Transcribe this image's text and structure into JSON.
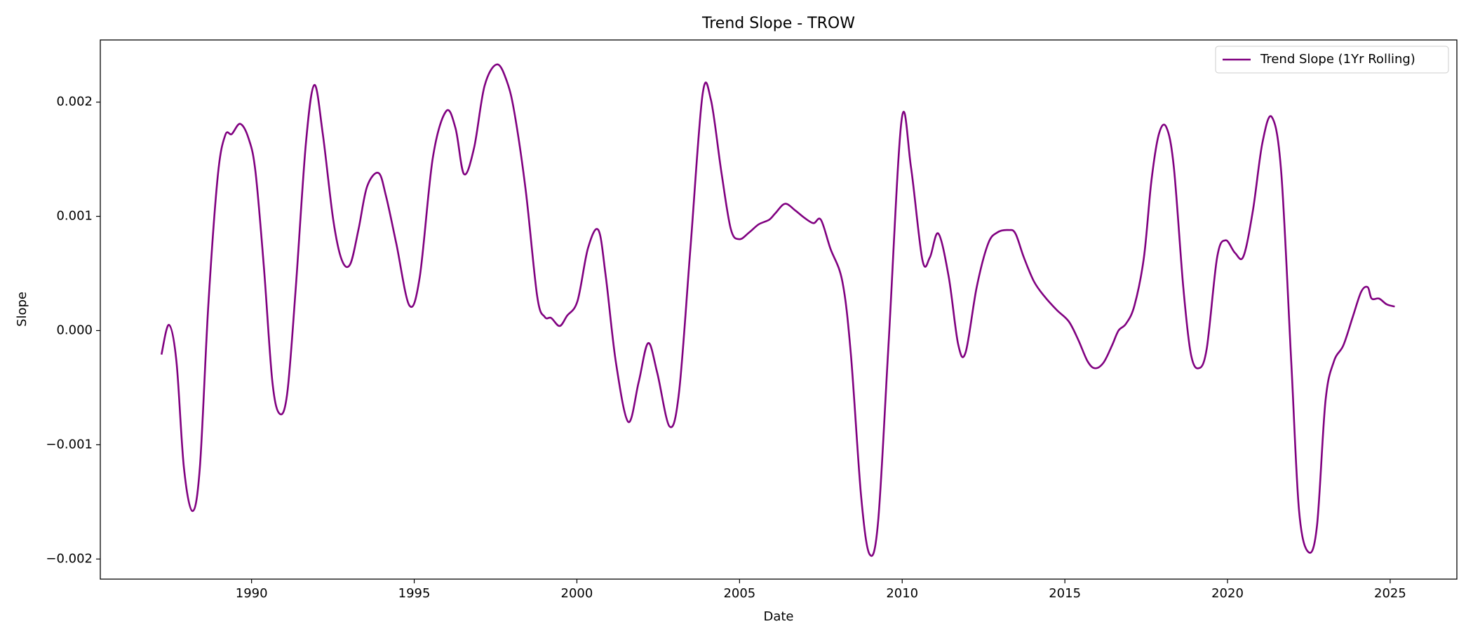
{
  "chart_data": {
    "type": "line",
    "title": "Trend Slope - TROW",
    "x_label": "Date",
    "y_label": "Slope",
    "x": [
      1987.23,
      1987.46,
      1987.69,
      1987.92,
      1988.18,
      1988.41,
      1988.67,
      1988.96,
      1989.19,
      1989.39,
      1989.65,
      1989.91,
      1990.12,
      1990.38,
      1990.64,
      1990.87,
      1991.1,
      1991.36,
      1991.67,
      1991.93,
      1992.19,
      1992.51,
      1992.77,
      1993.03,
      1993.29,
      1993.55,
      1993.9,
      1994.13,
      1994.45,
      1994.85,
      1995.17,
      1995.57,
      1995.98,
      1996.27,
      1996.53,
      1996.84,
      1997.16,
      1997.54,
      1997.85,
      1998.09,
      1998.43,
      1998.78,
      1999.01,
      1999.21,
      1999.47,
      1999.7,
      2000.02,
      2000.34,
      2000.66,
      2000.89,
      2001.2,
      2001.58,
      2001.9,
      2002.19,
      2002.47,
      2002.85,
      2003.14,
      2003.49,
      2003.86,
      2004.12,
      2004.44,
      2004.73,
      2004.99,
      2005.3,
      2005.59,
      2005.91,
      2006.11,
      2006.4,
      2006.72,
      2006.98,
      2007.27,
      2007.5,
      2007.79,
      2008.16,
      2008.42,
      2008.74,
      2009.0,
      2009.26,
      2009.58,
      2009.98,
      2010.27,
      2010.62,
      2010.85,
      2011.11,
      2011.43,
      2011.72,
      2011.95,
      2012.29,
      2012.64,
      2012.93,
      2013.27,
      2013.48,
      2013.74,
      2014.05,
      2014.37,
      2014.75,
      2015.12,
      2015.41,
      2015.7,
      2015.93,
      2016.19,
      2016.45,
      2016.65,
      2016.88,
      2017.14,
      2017.43,
      2017.66,
      2017.89,
      2018.12,
      2018.35,
      2018.64,
      2018.87,
      2019.11,
      2019.36,
      2019.68,
      2019.94,
      2020.23,
      2020.49,
      2020.78,
      2021.07,
      2021.36,
      2021.65,
      2021.96,
      2022.2,
      2022.49,
      2022.75,
      2023.01,
      2023.27,
      2023.56,
      2023.85,
      2024.11,
      2024.31,
      2024.43,
      2024.66,
      2024.89,
      2025.14
    ],
    "series": [
      {
        "name": "Trend Slope (1Yr Rolling)",
        "color": "#800080",
        "values": [
          -0.00021,
          5e-05,
          -0.00027,
          -0.0012,
          -0.00158,
          -0.0012,
          0.00022,
          0.00135,
          0.00171,
          0.00172,
          0.00181,
          0.00168,
          0.00139,
          0.00055,
          -0.00045,
          -0.00073,
          -0.00054,
          0.00038,
          0.00164,
          0.00215,
          0.00172,
          0.00097,
          0.00062,
          0.00058,
          0.00089,
          0.00126,
          0.00138,
          0.00118,
          0.00076,
          0.00022,
          0.00047,
          0.00151,
          0.00192,
          0.00177,
          0.00137,
          0.0016,
          0.00214,
          0.00233,
          0.00218,
          0.00189,
          0.00122,
          0.0003,
          0.00012,
          0.00011,
          4e-05,
          0.00013,
          0.00026,
          0.00072,
          0.00088,
          0.00047,
          -0.00028,
          -0.0008,
          -0.00045,
          -0.00011,
          -0.00037,
          -0.00084,
          -0.00054,
          0.00072,
          0.00206,
          0.00202,
          0.00139,
          0.00089,
          0.0008,
          0.00086,
          0.00093,
          0.00097,
          0.00103,
          0.00111,
          0.00105,
          0.00099,
          0.00094,
          0.00097,
          0.00072,
          0.00043,
          -0.0002,
          -0.00146,
          -0.00196,
          -0.00167,
          -0.00012,
          0.00184,
          0.00143,
          0.00062,
          0.00064,
          0.00085,
          0.00047,
          -0.00012,
          -0.00019,
          0.00038,
          0.00076,
          0.00086,
          0.00088,
          0.00085,
          0.00064,
          0.00043,
          0.0003,
          0.00018,
          8e-05,
          -8e-05,
          -0.00027,
          -0.00033,
          -0.00028,
          -0.00013,
          0,
          6e-05,
          0.00022,
          0.00064,
          0.00131,
          0.00172,
          0.00178,
          0.00143,
          0.00038,
          -0.0002,
          -0.00033,
          -0.00016,
          0.00064,
          0.00079,
          0.00068,
          0.00065,
          0.00105,
          0.00164,
          0.00187,
          0.00139,
          -0.00028,
          -0.00158,
          -0.00194,
          -0.00171,
          -0.00062,
          -0.00027,
          -0.00013,
          0.00012,
          0.00034,
          0.00038,
          0.00028,
          0.00028,
          0.00023,
          0.00021
        ]
      }
    ],
    "xlim": [
      1985.35,
      2027.05
    ],
    "xticks": [
      1990,
      1995,
      2000,
      2005,
      2010,
      2015,
      2020,
      2025
    ],
    "ylim": [
      -0.002176,
      0.002544
    ],
    "yticks": [
      {
        "value": -0.002,
        "label": "−0.002"
      },
      {
        "value": -0.001,
        "label": "−0.001"
      },
      {
        "value": 0,
        "label": "0.000"
      },
      0.001,
      0.002
    ],
    "grid": false,
    "legend": "upper right"
  }
}
